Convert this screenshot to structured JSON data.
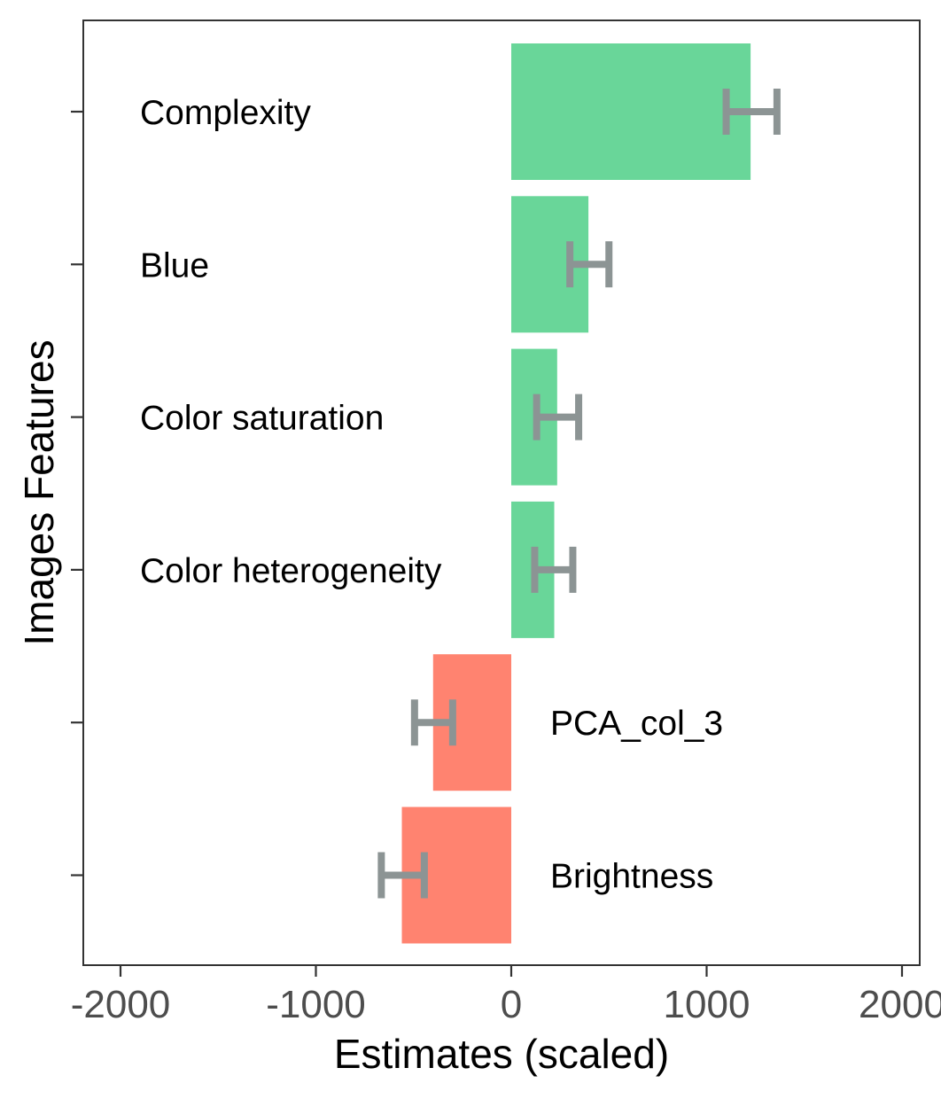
{
  "chart_data": {
    "type": "bar",
    "orientation": "horizontal",
    "title": "",
    "xlabel": "Estimates (scaled)",
    "ylabel": "Images Features",
    "xlim": [
      -2000,
      2000
    ],
    "x_ticks": [
      "-2000",
      "-1000",
      "0",
      "1000",
      "2000"
    ],
    "x_tick_values": [
      -2000,
      -1000,
      0,
      1000,
      2000
    ],
    "grid": false,
    "legend": "none",
    "colors": {
      "positive": "#69D699",
      "negative": "#FF8370",
      "error_bar": "#8C9494",
      "panel_border": "#333333",
      "tick_text": "#4D4D4D"
    },
    "bars": [
      {
        "label": "Complexity",
        "value": 1225,
        "ci_low": 1100,
        "ci_high": 1360,
        "sign": "positive"
      },
      {
        "label": "Blue",
        "value": 395,
        "ci_low": 300,
        "ci_high": 500,
        "sign": "positive"
      },
      {
        "label": "Color saturation",
        "value": 235,
        "ci_low": 130,
        "ci_high": 345,
        "sign": "positive"
      },
      {
        "label": "Color heterogeneity",
        "value": 220,
        "ci_low": 120,
        "ci_high": 315,
        "sign": "positive"
      },
      {
        "label": "PCA_col_3",
        "value": -400,
        "ci_low": -495,
        "ci_high": -300,
        "sign": "negative"
      },
      {
        "label": "Brightness",
        "value": -560,
        "ci_low": -665,
        "ci_high": -445,
        "sign": "negative"
      }
    ]
  }
}
